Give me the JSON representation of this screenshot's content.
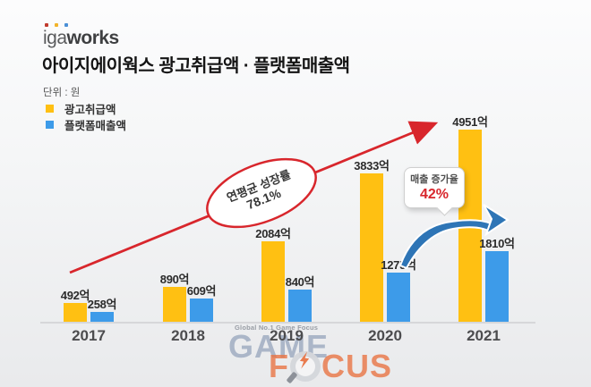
{
  "header": {
    "logo": {
      "iga": "iga",
      "works": "works",
      "dot_colors": [
        "#c13a2e",
        "#f2b32a",
        "#4a8fd6"
      ]
    },
    "title": "아이지에이웍스 광고취급액 · 플랫폼매출액"
  },
  "chart_data": {
    "type": "bar",
    "title": "아이지에이웍스 광고취급액 · 플랫폼매출액",
    "unit": "단위 : 원",
    "categories": [
      "2017",
      "2018",
      "2019",
      "2020",
      "2021"
    ],
    "series": [
      {
        "name": "광고취급액",
        "color": "#ffc012",
        "values": [
          492,
          890,
          2084,
          3833,
          4951
        ],
        "value_labels": [
          "492억",
          "890억",
          "2084억",
          "3833억",
          "4951억"
        ]
      },
      {
        "name": "플랫폼매출액",
        "color": "#3d9be9",
        "values": [
          258,
          609,
          840,
          1275,
          1810
        ],
        "value_labels": [
          "258억",
          "609억",
          "840억",
          "1275억",
          "1810억"
        ]
      }
    ],
    "ylim": [
      0,
      5200
    ],
    "grid": false,
    "legend_position": "top-left",
    "annotations": {
      "cagr_label": "연평균 성장률",
      "cagr_value": "78.1%",
      "bubble_title": "매출 증가율",
      "bubble_value": "42%",
      "trend_color": "#d8262c",
      "swoosh_color": "#2e75b6"
    }
  },
  "watermark": {
    "tagline": "Global No.1 Game Focus",
    "word1": "GAME",
    "word2_start": "F",
    "word2_end": "CUS"
  }
}
